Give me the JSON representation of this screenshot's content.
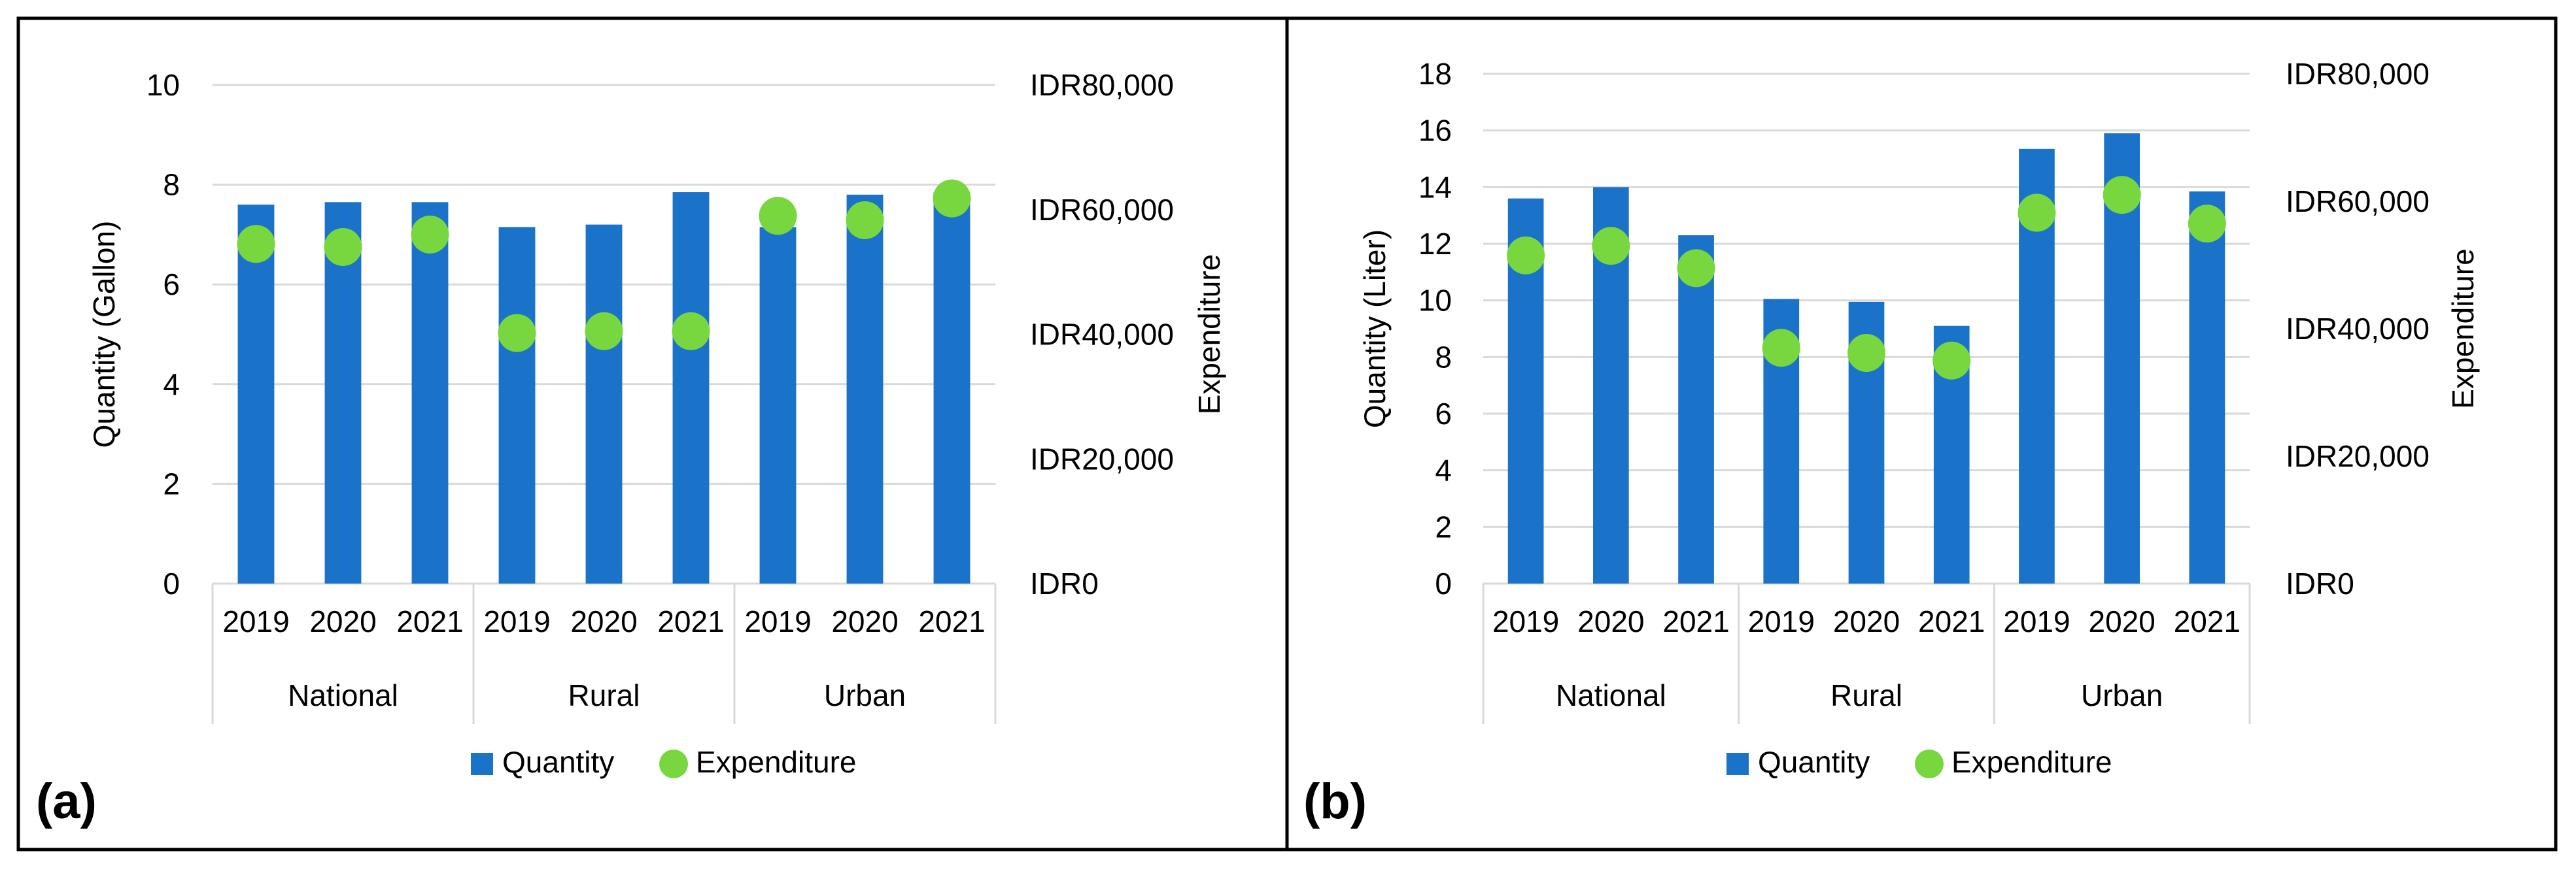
{
  "colors": {
    "quantity": "#1a73c9",
    "expenditure": "#78d63f",
    "frame": "#000000",
    "grid": "#d9d9d9"
  },
  "legend": {
    "quantity_label": "Quantity",
    "expenditure_label": "Expenditure"
  },
  "chart_data": [
    {
      "type": "bar",
      "panel_label": "(a)",
      "groups": [
        "National",
        "Rural",
        "Urban"
      ],
      "categories": [
        "2019",
        "2020",
        "2021",
        "2019",
        "2020",
        "2021",
        "2019",
        "2020",
        "2021"
      ],
      "series": [
        {
          "name": "Quantity",
          "axis": "left",
          "kind": "bar",
          "values": [
            7.6,
            7.65,
            7.65,
            7.15,
            7.2,
            7.85,
            7.15,
            7.8,
            7.85
          ]
        },
        {
          "name": "Expenditure",
          "axis": "right",
          "kind": "scatter",
          "values": [
            54500,
            54000,
            56000,
            40200,
            40500,
            40500,
            59000,
            58300,
            61800
          ]
        }
      ],
      "ylabel": "Quantity (Gallon)",
      "y2label": "Expenditure",
      "ylim": [
        0,
        10
      ],
      "yticks": [
        "0",
        "2",
        "4",
        "6",
        "8",
        "10"
      ],
      "y2lim": [
        0,
        80000
      ],
      "y2ticks": [
        "IDR0",
        "IDR20,000",
        "IDR40,000",
        "IDR60,000",
        "IDR80,000"
      ],
      "legend_position": "bottom"
    },
    {
      "type": "bar",
      "panel_label": "(b)",
      "groups": [
        "National",
        "Rural",
        "Urban"
      ],
      "categories": [
        "2019",
        "2020",
        "2021",
        "2019",
        "2020",
        "2021",
        "2019",
        "2020",
        "2021"
      ],
      "series": [
        {
          "name": "Quantity",
          "axis": "left",
          "kind": "bar",
          "values": [
            13.6,
            14.0,
            12.3,
            10.05,
            9.95,
            9.1,
            15.35,
            15.9,
            13.85
          ]
        },
        {
          "name": "Expenditure",
          "axis": "right",
          "kind": "scatter",
          "values": [
            51500,
            53000,
            49500,
            37000,
            36200,
            35000,
            58200,
            61000,
            56500
          ]
        }
      ],
      "ylabel": "Quantity (Liter)",
      "y2label": "Expenditure",
      "ylim": [
        0,
        18
      ],
      "yticks": [
        "0",
        "2",
        "4",
        "6",
        "8",
        "10",
        "12",
        "14",
        "16",
        "18"
      ],
      "y2lim": [
        0,
        80000
      ],
      "y2ticks": [
        "IDR0",
        "IDR20,000",
        "IDR40,000",
        "IDR60,000",
        "IDR80,000"
      ],
      "legend_position": "bottom"
    }
  ]
}
